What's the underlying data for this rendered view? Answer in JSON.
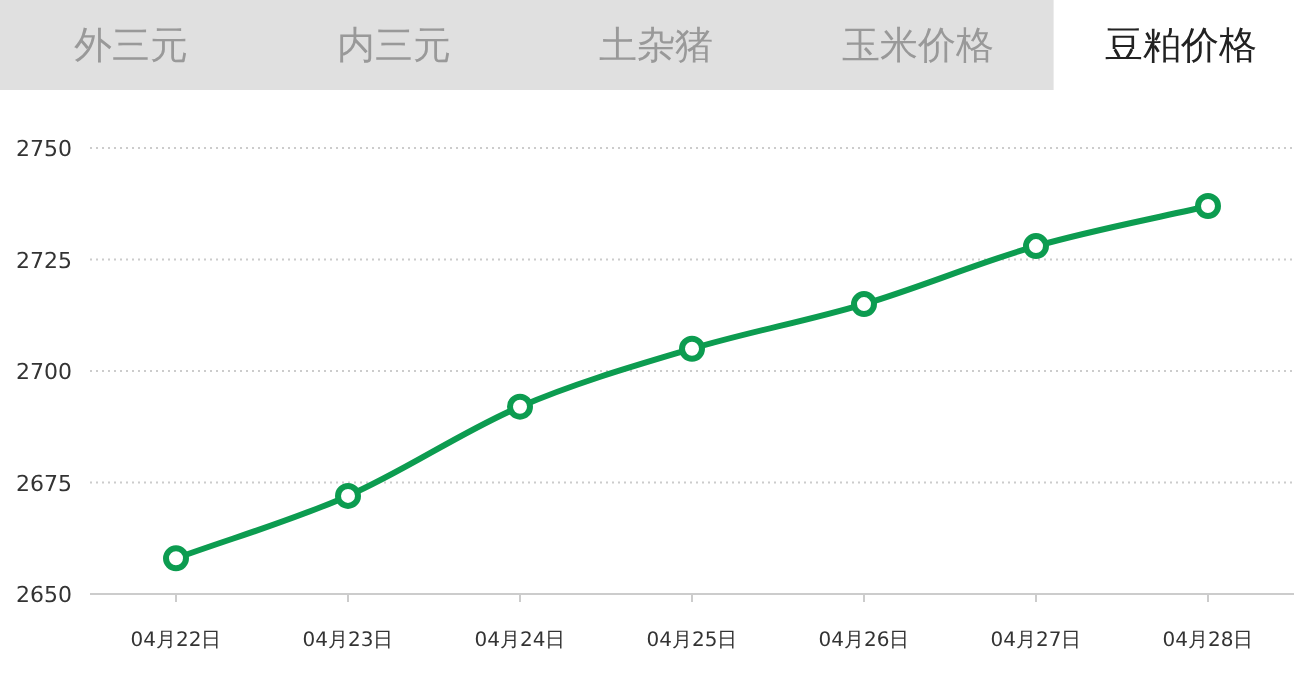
{
  "chart_data": {
    "type": "line",
    "title": "豆粕价格",
    "annotations": [
      "外三元",
      "内三元",
      "土杂猪",
      "玉米价格"
    ],
    "categories": [
      "04月22日",
      "04月23日",
      "04月24日",
      "04月25日",
      "04月26日",
      "04月27日",
      "04月28日"
    ],
    "series": [
      {
        "color": "#0c9c50",
        "values": [
          2658,
          2672,
          2692,
          2705,
          2715,
          2728,
          2737
        ]
      }
    ],
    "ylim": [
      2650,
      2750
    ],
    "yticks": [
      2650,
      2675,
      2700,
      2725,
      2750
    ],
    "grid": "y",
    "marker": "circle",
    "line_style": "solid"
  }
}
